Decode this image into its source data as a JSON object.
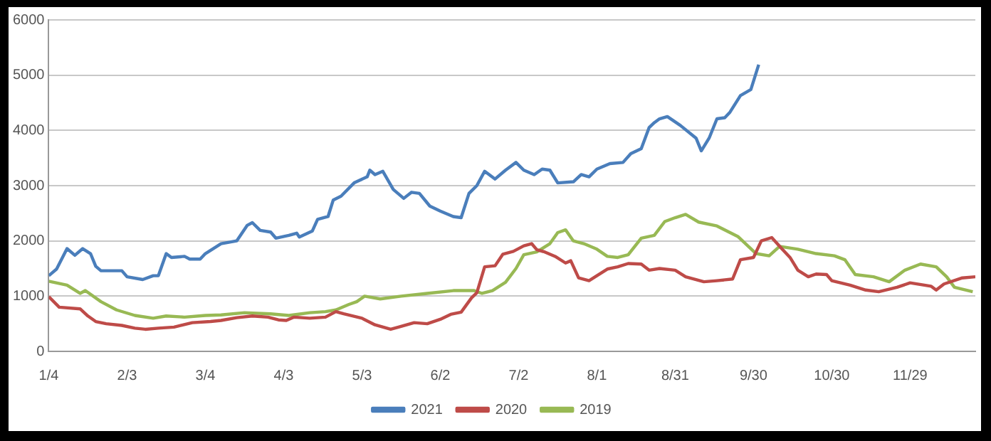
{
  "chart_data": {
    "type": "line",
    "xlim": [
      "--01-04",
      "--12-24"
    ],
    "xticks": [
      {
        "value": "--01-04",
        "label": "1/4"
      },
      {
        "value": "--02-03",
        "label": "2/3"
      },
      {
        "value": "--03-04",
        "label": "3/4"
      },
      {
        "value": "--04-03",
        "label": "4/3"
      },
      {
        "value": "--05-03",
        "label": "5/3"
      },
      {
        "value": "--06-02",
        "label": "6/2"
      },
      {
        "value": "--07-02",
        "label": "7/2"
      },
      {
        "value": "--08-01",
        "label": "8/1"
      },
      {
        "value": "--08-31",
        "label": "8/31"
      },
      {
        "value": "--09-30",
        "label": "9/30"
      },
      {
        "value": "--10-30",
        "label": "10/30"
      },
      {
        "value": "--11-29",
        "label": "11/29"
      }
    ],
    "ylim": [
      0,
      6000
    ],
    "yticks": [
      0,
      1000,
      2000,
      3000,
      4000,
      5000,
      6000
    ],
    "grid": "y",
    "legend": "bottom",
    "marker": "none",
    "line_style": "solid",
    "series": [
      {
        "name": "2021",
        "color": "#4a7ebb",
        "x": [
          "--01-04",
          "--01-07",
          "--01-11",
          "--01-14",
          "--01-17",
          "--01-20",
          "--01-22",
          "--01-24",
          "--02-01",
          "--02-03",
          "--02-09",
          "--02-13",
          "--02-15",
          "--02-18",
          "--02-20",
          "--02-25",
          "--02-27",
          "--03-02",
          "--03-04",
          "--03-07",
          "--03-10",
          "--03-16",
          "--03-20",
          "--03-22",
          "--03-25",
          "--03-29",
          "--03-31",
          "--04-05",
          "--04-08",
          "--04-09",
          "--04-14",
          "--04-16",
          "--04-20",
          "--04-22",
          "--04-25",
          "--04-30",
          "--05-05",
          "--05-06",
          "--05-08",
          "--05-11",
          "--05-15",
          "--05-19",
          "--05-22",
          "--05-25",
          "--05-29",
          "--06-02",
          "--06-07",
          "--06-10",
          "--06-13",
          "--06-16",
          "--06-19",
          "--06-23",
          "--06-27",
          "--07-01",
          "--07-04",
          "--07-08",
          "--07-11",
          "--07-14",
          "--07-17",
          "--07-23",
          "--07-26",
          "--07-29",
          "--08-01",
          "--08-06",
          "--08-11",
          "--08-14",
          "--08-18",
          "--08-21",
          "--08-23",
          "--08-25",
          "--08-28",
          "--09-02",
          "--09-08",
          "--09-10",
          "--09-13",
          "--09-16",
          "--09-19",
          "--09-21",
          "--09-25",
          "--09-29",
          "--10-02"
        ],
        "values": [
          1370,
          1490,
          1860,
          1740,
          1860,
          1770,
          1540,
          1460,
          1460,
          1350,
          1300,
          1370,
          1370,
          1770,
          1700,
          1720,
          1670,
          1670,
          1770,
          1860,
          1950,
          2000,
          2280,
          2330,
          2190,
          2160,
          2050,
          2100,
          2140,
          2070,
          2180,
          2390,
          2440,
          2740,
          2810,
          3050,
          3160,
          3280,
          3200,
          3260,
          2930,
          2770,
          2880,
          2860,
          2630,
          2540,
          2440,
          2420,
          2860,
          3000,
          3260,
          3120,
          3280,
          3420,
          3280,
          3200,
          3300,
          3280,
          3050,
          3070,
          3200,
          3160,
          3300,
          3400,
          3420,
          3580,
          3670,
          4050,
          4140,
          4210,
          4250,
          4090,
          3860,
          3630,
          3860,
          4210,
          4230,
          4330,
          4630,
          4740,
          5190
        ]
      },
      {
        "name": "2020",
        "color": "#be4b48",
        "x": [
          "--01-04",
          "--01-08",
          "--01-16",
          "--01-19",
          "--01-22",
          "--01-26",
          "--02-01",
          "--02-06",
          "--02-10",
          "--02-15",
          "--02-21",
          "--02-28",
          "--03-06",
          "--03-10",
          "--03-16",
          "--03-22",
          "--03-28",
          "--04-01",
          "--04-04",
          "--04-07",
          "--04-13",
          "--04-19",
          "--04-23",
          "--04-26",
          "--05-03",
          "--05-08",
          "--05-14",
          "--05-17",
          "--05-23",
          "--05-28",
          "--06-02",
          "--06-06",
          "--06-10",
          "--06-14",
          "--06-16",
          "--06-19",
          "--06-23",
          "--06-26",
          "--06-30",
          "--07-04",
          "--07-07",
          "--07-09",
          "--07-12",
          "--07-16",
          "--07-20",
          "--07-22",
          "--07-25",
          "--07-29",
          "--08-01",
          "--08-05",
          "--08-09",
          "--08-13",
          "--08-18",
          "--08-21",
          "--08-25",
          "--08-31",
          "--09-04",
          "--09-11",
          "--09-16",
          "--09-22",
          "--09-25",
          "--09-30",
          "--10-03",
          "--10-07",
          "--10-11",
          "--10-14",
          "--10-17",
          "--10-21",
          "--10-24",
          "--10-28",
          "--10-30",
          "--11-06",
          "--11-12",
          "--11-17",
          "--11-24",
          "--11-29",
          "--12-07",
          "--12-09",
          "--12-12",
          "--12-19",
          "--12-24"
        ],
        "values": [
          990,
          800,
          770,
          640,
          540,
          500,
          470,
          420,
          400,
          420,
          440,
          520,
          540,
          560,
          610,
          640,
          620,
          570,
          560,
          620,
          600,
          620,
          720,
          680,
          600,
          480,
          400,
          440,
          520,
          500,
          580,
          670,
          710,
          970,
          1060,
          1530,
          1550,
          1760,
          1810,
          1910,
          1950,
          1840,
          1800,
          1720,
          1600,
          1640,
          1330,
          1280,
          1370,
          1490,
          1530,
          1590,
          1580,
          1470,
          1500,
          1470,
          1350,
          1260,
          1280,
          1310,
          1660,
          1700,
          2000,
          2060,
          1850,
          1700,
          1470,
          1350,
          1400,
          1390,
          1280,
          1200,
          1110,
          1080,
          1160,
          1240,
          1180,
          1110,
          1220,
          1330,
          1350
        ]
      },
      {
        "name": "2019",
        "color": "#98b954",
        "x": [
          "--01-04",
          "--01-11",
          "--01-16",
          "--01-18",
          "--01-24",
          "--01-30",
          "--02-06",
          "--02-13",
          "--02-18",
          "--02-25",
          "--03-04",
          "--03-10",
          "--03-19",
          "--03-29",
          "--04-05",
          "--04-13",
          "--04-19",
          "--04-23",
          "--04-28",
          "--05-01",
          "--05-04",
          "--05-10",
          "--05-18",
          "--05-28",
          "--06-07",
          "--06-15",
          "--06-18",
          "--06-22",
          "--06-27",
          "--07-01",
          "--07-04",
          "--07-09",
          "--07-14",
          "--07-17",
          "--07-20",
          "--07-23",
          "--07-27",
          "--08-01",
          "--08-05",
          "--08-09",
          "--08-13",
          "--08-18",
          "--08-23",
          "--08-27",
          "--08-31",
          "--09-04",
          "--09-09",
          "--09-16",
          "--09-24",
          "--10-01",
          "--10-06",
          "--10-10",
          "--10-17",
          "--10-24",
          "--10-31",
          "--11-04",
          "--11-08",
          "--11-15",
          "--11-21",
          "--11-27",
          "--12-03",
          "--12-09",
          "--12-13",
          "--12-16",
          "--12-23"
        ],
        "values": [
          1270,
          1200,
          1050,
          1100,
          900,
          750,
          650,
          600,
          640,
          620,
          650,
          660,
          700,
          680,
          650,
          700,
          720,
          750,
          850,
          900,
          1000,
          950,
          1000,
          1050,
          1100,
          1100,
          1050,
          1100,
          1250,
          1500,
          1750,
          1800,
          1950,
          2150,
          2200,
          2000,
          1950,
          1850,
          1720,
          1700,
          1750,
          2050,
          2100,
          2350,
          2420,
          2480,
          2340,
          2270,
          2080,
          1770,
          1730,
          1900,
          1850,
          1770,
          1730,
          1660,
          1390,
          1350,
          1260,
          1470,
          1580,
          1530,
          1350,
          1160,
          1080
        ]
      }
    ]
  }
}
